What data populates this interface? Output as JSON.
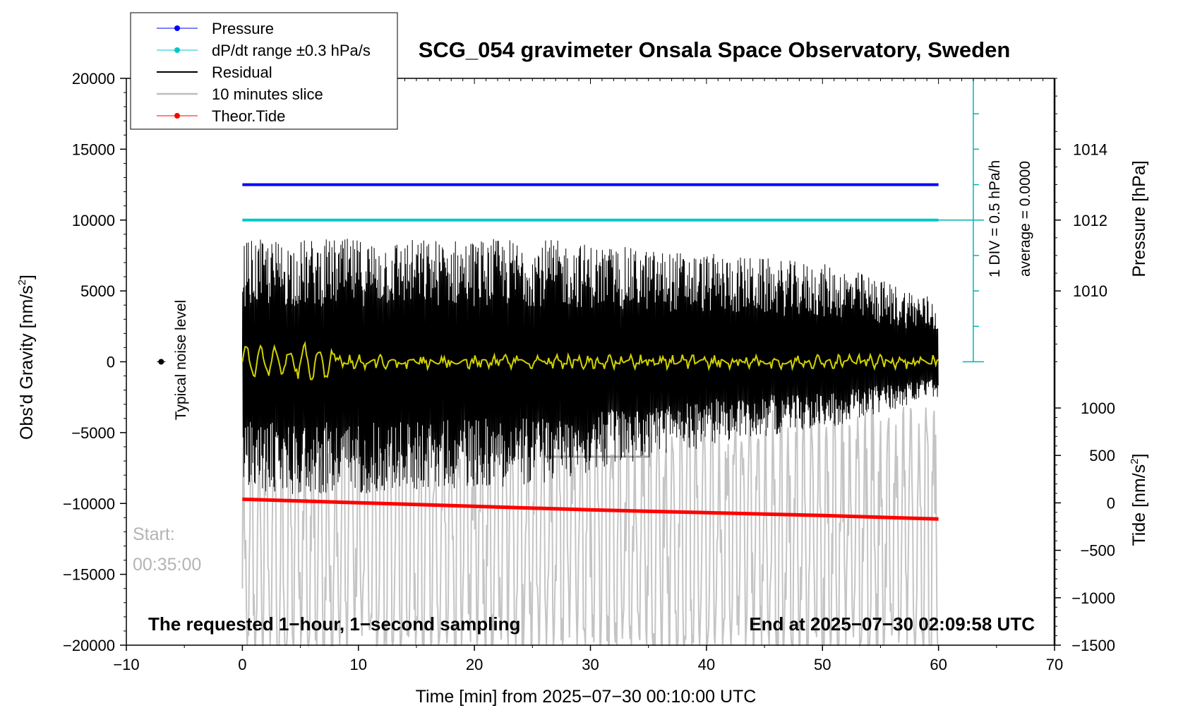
{
  "chart_data": {
    "type": "line",
    "title": "SCG_054 gravimeter Onsala Space Observatory, Sweden",
    "xlabel": "Time [min] from 2025−07−30 00:10:00 UTC",
    "xlim": [
      -10,
      70
    ],
    "x_ticks": [
      -10,
      0,
      10,
      20,
      30,
      40,
      50,
      60,
      70
    ],
    "x_tick_labels": [
      "−10",
      "0",
      "10",
      "20",
      "30",
      "40",
      "50",
      "60",
      "70"
    ],
    "ylabel": "Obs'd Gravity [nm/s",
    "ylabel_sup": "2",
    "ylabel_end": "]",
    "ylim": [
      -20000,
      20000
    ],
    "y_ticks": [
      -20000,
      -15000,
      -10000,
      -5000,
      0,
      5000,
      10000,
      15000,
      20000
    ],
    "y_tick_labels": [
      "−20000",
      "−15000",
      "−10000",
      "−5000",
      "0",
      "5000",
      "10000",
      "15000",
      "20000"
    ],
    "pressure_axis": {
      "label": "Pressure [hPa]",
      "ticks": [
        1010,
        1012,
        1014
      ],
      "tick_labels": [
        "1010",
        "1012",
        "1014"
      ],
      "gravity_at": [
        5000,
        10000,
        15000
      ]
    },
    "tide_axis": {
      "label": "Tide [nm/s",
      "label_sup": "2",
      "label_end": "]",
      "ticks": [
        -1500,
        -1000,
        -500,
        0,
        500,
        1000
      ],
      "tick_labels": [
        "−1500",
        "−1000",
        "−500",
        "0",
        "500",
        "1000"
      ],
      "range": [
        -1500,
        1000
      ]
    },
    "legend": {
      "placement": "top-left",
      "entries": [
        {
          "label": "Pressure",
          "color": "#0000ff",
          "marker": true
        },
        {
          "label": "dP/dt range ±0.3 hPa/s",
          "color": "#00c8c8",
          "marker": true
        },
        {
          "label": "Residual",
          "color": "#000000",
          "marker": false
        },
        {
          "label": "10 minutes slice",
          "color": "#bebebe",
          "marker": false
        },
        {
          "label": "Theor.Tide",
          "color": "#ff0000",
          "marker": true
        }
      ]
    },
    "series": [
      {
        "name": "Pressure",
        "color": "#0000ff",
        "x": [
          0,
          60
        ],
        "y": [
          12500,
          12500
        ]
      },
      {
        "name": "dP/dt range",
        "color": "#00c8c8",
        "x": [
          0,
          60
        ],
        "y": [
          10000,
          10000
        ]
      },
      {
        "name": "Theor.Tide",
        "color": "#ff0000",
        "x": [
          0,
          10,
          20,
          30,
          40,
          50,
          60
        ],
        "y": [
          -9700,
          -9950,
          -10200,
          -10450,
          -10650,
          -10850,
          -11100
        ]
      },
      {
        "name": "Residual",
        "color": "#000000",
        "x_range": [
          0,
          60
        ],
        "envelope_max": [
          8600,
          8700,
          8700,
          8700,
          8000,
          7500,
          6800,
          4500
        ],
        "envelope_min": [
          -9400,
          -9400,
          -9000,
          -8700,
          -7000,
          -5500,
          -4500,
          -2500
        ]
      }
    ],
    "dpdt_scale": {
      "label1": "1 DIV = 0.5 hPa/h",
      "label2": "average = 0.0000",
      "color": "#00b4b4",
      "center_value": 10000,
      "bottom_value": 0
    },
    "noise_label": "Typical noise level",
    "noise_marker": {
      "x": -7,
      "y": 0
    },
    "start_label": "Start:",
    "start_time": "00:35:00",
    "bottom_left_note": "The requested 1−hour, 1−second sampling",
    "bottom_right_note": "End at 2025−07−30 02:09:58 UTC"
  }
}
